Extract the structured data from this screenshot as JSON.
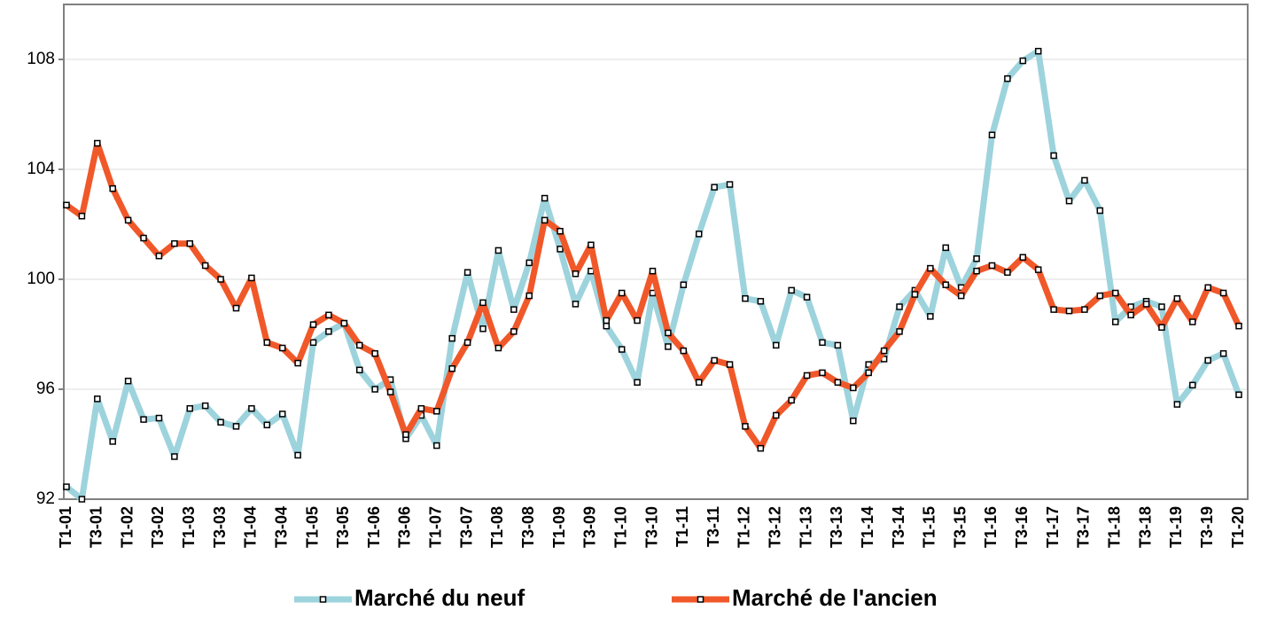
{
  "chart_data": {
    "type": "line",
    "categories": [
      "T1-01",
      null,
      "T3-01",
      null,
      "T1-02",
      null,
      "T3-02",
      null,
      "T1-03",
      null,
      "T3-03",
      null,
      "T1-04",
      null,
      "T3-04",
      null,
      "T1-05",
      null,
      "T3-05",
      null,
      "T1-06",
      null,
      "T3-06",
      null,
      "T1-07",
      null,
      "T3-07",
      null,
      "T1-08",
      null,
      "T3-08",
      null,
      "T1-09",
      null,
      "T3-09",
      null,
      "T1-10",
      null,
      "T3-10",
      null,
      "T1-11",
      null,
      "T3-11",
      null,
      "T1-12",
      null,
      "T3-12",
      null,
      "T1-13",
      null,
      "T3-13",
      null,
      "T1-14",
      null,
      "T3-14",
      null,
      "T1-15",
      null,
      "T3-15",
      null,
      "T1-16",
      null,
      "T3-16",
      null,
      "T1-17",
      null,
      "T3-17",
      null,
      "T1-18",
      null,
      "T3-18",
      null,
      "T1-19",
      null,
      "T3-19",
      null,
      "T1-20"
    ],
    "series": [
      {
        "name": "Marché du neuf",
        "color": "#9dd3dc",
        "values": [
          92.45,
          92.0,
          95.65,
          94.1,
          96.3,
          94.9,
          94.95,
          93.55,
          95.3,
          95.4,
          94.8,
          94.65,
          95.3,
          94.7,
          95.1,
          93.6,
          97.7,
          98.1,
          98.4,
          96.7,
          96.0,
          96.35,
          94.2,
          95.05,
          93.95,
          97.85,
          100.25,
          98.2,
          101.05,
          98.9,
          100.6,
          102.95,
          101.1,
          99.1,
          100.3,
          98.3,
          97.45,
          96.25,
          99.5,
          97.55,
          99.8,
          101.65,
          103.35,
          103.45,
          99.3,
          99.2,
          97.6,
          99.6,
          99.35,
          97.7,
          97.6,
          94.85,
          96.9,
          97.1,
          99.0,
          99.6,
          98.65,
          101.15,
          99.7,
          100.75,
          105.25,
          107.3,
          107.95,
          108.3,
          104.5,
          102.85,
          103.6,
          102.5,
          98.45,
          99.0,
          99.2,
          99.0,
          95.45,
          96.15,
          97.05,
          97.3,
          95.8
        ]
      },
      {
        "name": "Marché de l'ancien",
        "color": "#f0582a",
        "values": [
          102.7,
          102.3,
          104.95,
          103.3,
          102.15,
          101.5,
          100.85,
          101.3,
          101.3,
          100.5,
          100.0,
          98.95,
          100.05,
          97.7,
          97.5,
          96.95,
          98.35,
          98.7,
          98.4,
          97.6,
          97.3,
          95.9,
          94.35,
          95.3,
          95.2,
          96.75,
          97.7,
          99.15,
          97.5,
          98.1,
          99.4,
          102.15,
          101.75,
          100.2,
          101.25,
          98.5,
          99.5,
          98.5,
          100.3,
          98.05,
          97.4,
          96.25,
          97.05,
          96.9,
          94.65,
          93.85,
          95.05,
          95.6,
          96.5,
          96.6,
          96.25,
          96.05,
          96.6,
          97.4,
          98.1,
          99.45,
          100.4,
          99.8,
          99.4,
          100.3,
          100.5,
          100.25,
          100.8,
          100.35,
          98.9,
          98.85,
          98.9,
          99.4,
          99.5,
          98.7,
          99.1,
          98.25,
          99.3,
          98.45,
          99.7,
          99.5,
          98.3
        ]
      }
    ],
    "ylim": [
      92,
      110
    ],
    "yticks": [
      92,
      96,
      100,
      104,
      108
    ],
    "grid": true
  }
}
